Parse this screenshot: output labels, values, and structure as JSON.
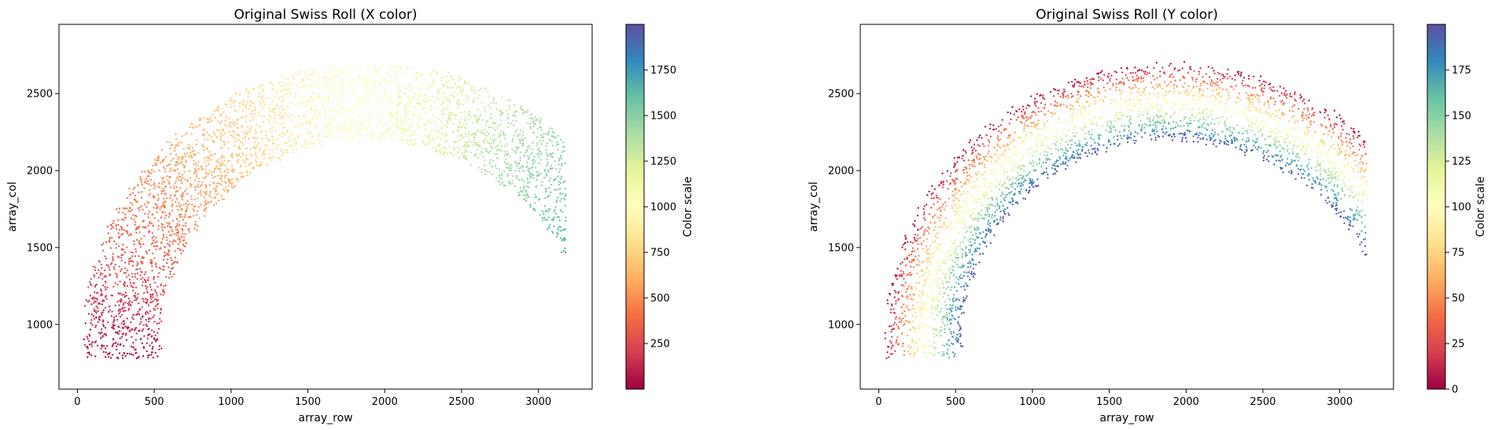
{
  "chart_data": [
    {
      "type": "scatter",
      "title": "Original Swiss Roll (X color)",
      "xlabel": "array_row",
      "ylabel": "array_col",
      "xlim": [
        -120,
        3350
      ],
      "ylim": [
        580,
        2950
      ],
      "xticks": [
        0,
        500,
        1000,
        1500,
        2000,
        2500,
        3000
      ],
      "yticks": [
        1000,
        1500,
        2000,
        2500
      ],
      "colormap": "Spectral",
      "color_by": "position along roll",
      "colorbar": {
        "label": "Color scale",
        "range": [
          0,
          2000
        ],
        "ticks": [
          250,
          500,
          750,
          1000,
          1250,
          1500,
          1750
        ]
      },
      "arc": {
        "center": [
          1780,
          780
        ],
        "inner_radius": [
          1230,
          1600
        ],
        "outer_radius": [
          1740,
          2090
        ],
        "theta_deg": [
          0,
          180
        ],
        "end_x": [
          40,
          3180
        ]
      }
    },
    {
      "type": "scatter",
      "title": "Original Swiss Roll (Y color)",
      "xlabel": "array_row",
      "ylabel": "array_col",
      "xlim": [
        -120,
        3350
      ],
      "ylim": [
        580,
        2950
      ],
      "xticks": [
        0,
        500,
        1000,
        1500,
        2000,
        2500,
        3000
      ],
      "yticks": [
        1000,
        1500,
        2000,
        2500
      ],
      "colormap": "Spectral",
      "color_by": "position across roll",
      "colorbar": {
        "label": "Color scale",
        "range": [
          0,
          200
        ],
        "ticks": [
          0,
          25,
          50,
          75,
          100,
          125,
          150,
          175
        ]
      },
      "arc": {
        "center": [
          1780,
          780
        ],
        "inner_radius": [
          1230,
          1600
        ],
        "outer_radius": [
          1740,
          2090
        ],
        "theta_deg": [
          0,
          180
        ],
        "end_x": [
          40,
          3180
        ]
      }
    }
  ],
  "colors": {
    "spectral": [
      "#9e0142",
      "#d53e4f",
      "#f46d43",
      "#fdae61",
      "#fee08b",
      "#ffffbf",
      "#e6f598",
      "#abdda4",
      "#66c2a5",
      "#3288bd",
      "#5e4fa2"
    ]
  }
}
